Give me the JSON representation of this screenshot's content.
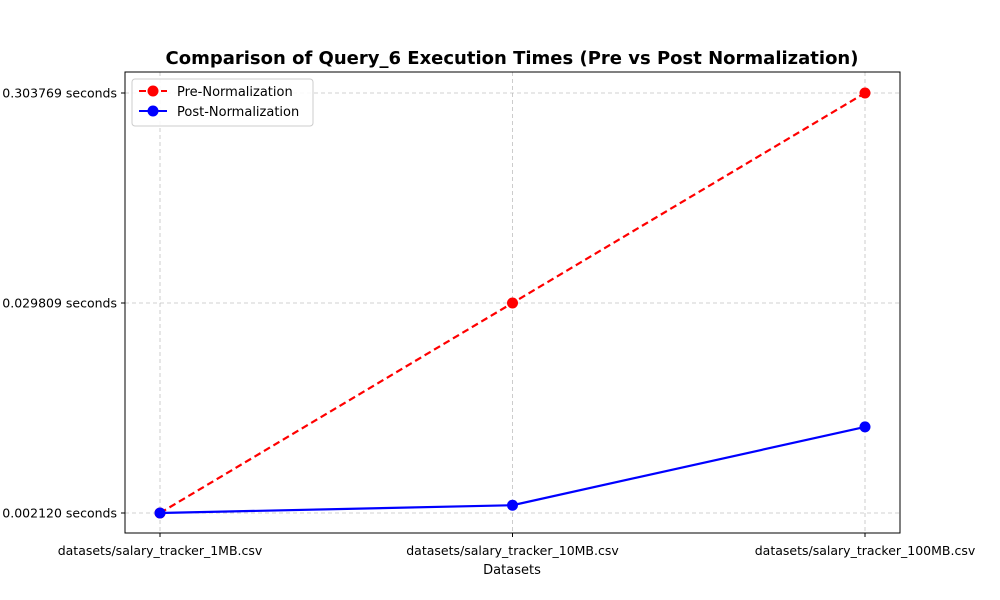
{
  "chart_data": {
    "type": "line",
    "title": "Comparison of Query_6 Execution Times (Pre vs Post Normalization)",
    "xlabel": "Datasets",
    "ylabel": "",
    "categories": [
      "datasets/salary_tracker_1MB.csv",
      "datasets/salary_tracker_10MB.csv",
      "datasets/salary_tracker_100MB.csv"
    ],
    "y_tick_labels": [
      "0.002120 seconds",
      "0.029809 seconds",
      "0.303769 seconds"
    ],
    "y_scale": "categorical tick positions (non-linear)",
    "series": [
      {
        "name": "Pre-Normalization",
        "values": [
          "0.002120 seconds",
          "0.029809 seconds",
          "0.303769 seconds"
        ],
        "color": "#ff0000",
        "line_style": "dashed",
        "marker": "circle"
      },
      {
        "name": "Post-Normalization",
        "values": [
          0.0021,
          0.0031,
          0.013
        ],
        "tick_offsets": [
          0.0,
          0.037,
          0.41
        ],
        "color": "#0000ff",
        "line_style": "solid",
        "marker": "circle"
      }
    ],
    "grid": true,
    "legend_position": "upper-left"
  }
}
